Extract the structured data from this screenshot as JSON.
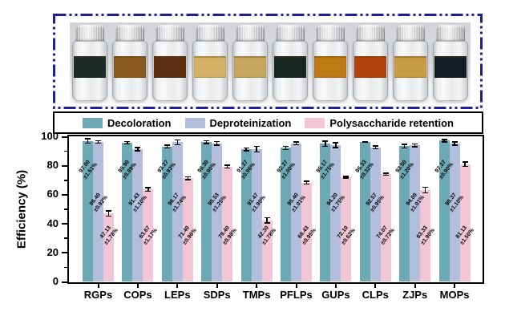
{
  "photo": {
    "border_color": "#1e1e96",
    "vials": [
      {
        "name": "vial-1",
        "liquid": "#1d2b27"
      },
      {
        "name": "vial-2",
        "liquid": "#8a5a1e"
      },
      {
        "name": "vial-3",
        "liquid": "#5c2f12"
      },
      {
        "name": "vial-4",
        "liquid": "#d3b063"
      },
      {
        "name": "vial-5",
        "liquid": "#c7a65e"
      },
      {
        "name": "vial-6",
        "liquid": "#182620"
      },
      {
        "name": "vial-7",
        "liquid": "#c07a16"
      },
      {
        "name": "vial-8",
        "liquid": "#b2430f"
      },
      {
        "name": "vial-9",
        "liquid": "#c89b45"
      },
      {
        "name": "vial-10",
        "liquid": "#141d23"
      }
    ]
  },
  "legend": {
    "items": [
      {
        "label": "Decoloration",
        "color": "#6CA9B4"
      },
      {
        "label": "Deproteinization",
        "color": "#B3BEDC"
      },
      {
        "label": "Polysaccharide retention",
        "color": "#F3C6D5"
      }
    ]
  },
  "chart_data": {
    "type": "bar",
    "title": "",
    "xlabel": "",
    "ylabel": "Efficiency (%)",
    "ylim": [
      0,
      100
    ],
    "yticks": [
      0,
      20,
      40,
      60,
      80,
      100
    ],
    "yticks_minor": [
      10,
      30,
      50,
      70,
      90
    ],
    "grid": false,
    "legend_position": "top",
    "error_bars": true,
    "categories": [
      "RGPs",
      "COPs",
      "LEPs",
      "SDPs",
      "TMPs",
      "PFLPs",
      "GUPs",
      "CLPs",
      "ZJPs",
      "MOPs"
    ],
    "series": [
      {
        "name": "Decoloration",
        "color": "#6CA9B4",
        "values": [
          97.0,
          95.9,
          93.27,
          96.3,
          91.27,
          92.27,
          95.17,
          96.33,
          93.5,
          97.27
        ],
        "errors": [
          1.51,
          0.89,
          0.93,
          0.9,
          0.96,
          1.0,
          1.75,
          0.32,
          1.2,
          0.9
        ]
      },
      {
        "name": "Deproteinization",
        "color": "#B3BEDC",
        "values": [
          96.4,
          91.43,
          96.17,
          95.53,
          91.47,
          95.4,
          94.2,
          92.57,
          94.0,
          95.37
        ],
        "errors": [
          0.92,
          1.1,
          1.74,
          1.25,
          1.9,
          1.01,
          1.75,
          0.95,
          1.01,
          1.1
        ]
      },
      {
        "name": "Polysaccharide retention",
        "color": "#F3C6D5",
        "values": [
          47.13,
          63.67,
          71.4,
          79.4,
          42.3,
          68.43,
          72.1,
          74.07,
          63.33,
          81.13
        ],
        "errors": [
          1.78,
          1.17,
          0.96,
          0.98,
          1.78,
          0.95,
          0.62,
          0.72,
          1.9,
          1.5
        ]
      }
    ],
    "bar_label_format": "{value}±{error}%"
  }
}
